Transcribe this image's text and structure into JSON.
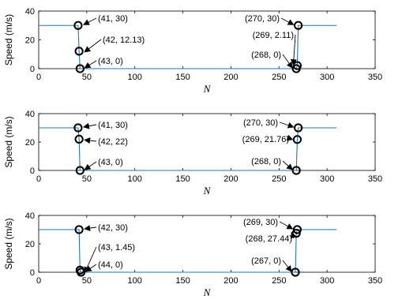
{
  "colors": {
    "line": "#1f77b4",
    "marker": "#000000",
    "axis": "#000000"
  },
  "chart_data": [
    {
      "type": "line",
      "xlabel": "N",
      "ylabel": "Speed (m/s)",
      "xlim": [
        0,
        350
      ],
      "ylim": [
        0,
        40
      ],
      "xticks": [
        0,
        50,
        100,
        150,
        200,
        250,
        300,
        350
      ],
      "yticks": [
        0,
        20,
        40
      ],
      "grid": false,
      "series": [
        {
          "x": [
            0,
            41,
            42,
            43,
            268,
            269,
            270,
            310
          ],
          "y": [
            30,
            30,
            12.13,
            0,
            0,
            2.11,
            30,
            30
          ]
        }
      ],
      "markers": [
        {
          "x": 41,
          "y": 30
        },
        {
          "x": 42,
          "y": 12.13
        },
        {
          "x": 43,
          "y": 0
        },
        {
          "x": 270,
          "y": 30
        },
        {
          "x": 269,
          "y": 2.11
        },
        {
          "x": 268,
          "y": 0
        }
      ],
      "annotations": [
        {
          "text": "(41, 30)"
        },
        {
          "text": "(42, 12.13)"
        },
        {
          "text": "(43, 0)"
        },
        {
          "text": "(270, 30)"
        },
        {
          "text": "(269, 2.11)"
        },
        {
          "text": "(268, 0)"
        }
      ]
    },
    {
      "type": "line",
      "xlabel": "N",
      "ylabel": "Speed (m/s)",
      "xlim": [
        0,
        350
      ],
      "ylim": [
        0,
        40
      ],
      "xticks": [
        0,
        50,
        100,
        150,
        200,
        250,
        300,
        350
      ],
      "yticks": [
        0,
        20,
        40
      ],
      "grid": false,
      "series": [
        {
          "x": [
            0,
            41,
            42,
            43,
            268,
            269,
            270,
            310
          ],
          "y": [
            30,
            30,
            22,
            0,
            0,
            21.76,
            30,
            30
          ]
        }
      ],
      "markers": [
        {
          "x": 41,
          "y": 30
        },
        {
          "x": 42,
          "y": 22
        },
        {
          "x": 43,
          "y": 0
        },
        {
          "x": 270,
          "y": 30
        },
        {
          "x": 269,
          "y": 21.76
        },
        {
          "x": 268,
          "y": 0
        }
      ],
      "annotations": [
        {
          "text": "(41, 30)"
        },
        {
          "text": "(42, 22)"
        },
        {
          "text": "(43, 0)"
        },
        {
          "text": "(270, 30)"
        },
        {
          "text": "(269, 21.76)"
        },
        {
          "text": "(268, 0)"
        }
      ]
    },
    {
      "type": "line",
      "xlabel": "N",
      "ylabel": "Speed (m/s)",
      "xlim": [
        0,
        350
      ],
      "ylim": [
        0,
        40
      ],
      "xticks": [
        0,
        50,
        100,
        150,
        200,
        250,
        300,
        350
      ],
      "yticks": [
        0,
        20,
        40
      ],
      "grid": false,
      "series": [
        {
          "x": [
            0,
            42,
            43,
            44,
            267,
            268,
            269,
            310
          ],
          "y": [
            30,
            30,
            1.45,
            0,
            0,
            27.44,
            30,
            30
          ]
        }
      ],
      "markers": [
        {
          "x": 42,
          "y": 30
        },
        {
          "x": 43,
          "y": 1.45
        },
        {
          "x": 44,
          "y": 0
        },
        {
          "x": 269,
          "y": 30
        },
        {
          "x": 268,
          "y": 27.44
        },
        {
          "x": 267,
          "y": 0
        }
      ],
      "annotations": [
        {
          "text": "(42, 30)"
        },
        {
          "text": "(43, 1.45)"
        },
        {
          "text": "(44, 0)"
        },
        {
          "text": "(269, 30)"
        },
        {
          "text": "(268, 27.44)"
        },
        {
          "text": "(267, 0)"
        }
      ]
    }
  ]
}
